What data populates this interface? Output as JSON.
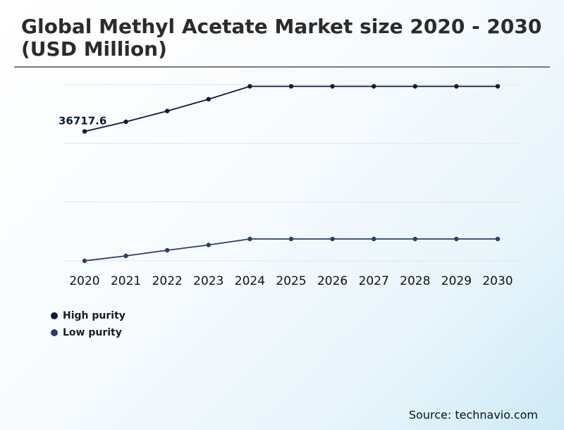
{
  "title": "Global Methyl Acetate Market size 2020 - 2030 (USD Million)",
  "source": "Source: technavio.com",
  "chart_data": {
    "type": "line",
    "categories": [
      "2020",
      "2021",
      "2022",
      "2023",
      "2024",
      "2025",
      "2026",
      "2027",
      "2028",
      "2029",
      "2030"
    ],
    "series": [
      {
        "name": "High purity",
        "color": "#0d1b3e",
        "values": [
          36717.6,
          39450,
          42500,
          45850,
          49500,
          49500,
          49500,
          49500,
          49500,
          49500,
          49500
        ]
      },
      {
        "name": "Low purity",
        "color": "#2c3e6e",
        "values": [
          0,
          1400,
          3000,
          4500,
          6200,
          6200,
          6200,
          6200,
          6200,
          6200,
          6200
        ]
      }
    ],
    "annotations": [
      {
        "series": "High purity",
        "category": "2020",
        "text": "36717.6"
      }
    ],
    "ylim": [
      0,
      50000
    ],
    "gridlines": [
      0,
      16667,
      33333,
      50000
    ],
    "grid": true,
    "legend": "bottom-left",
    "xlabel": "",
    "ylabel": ""
  }
}
